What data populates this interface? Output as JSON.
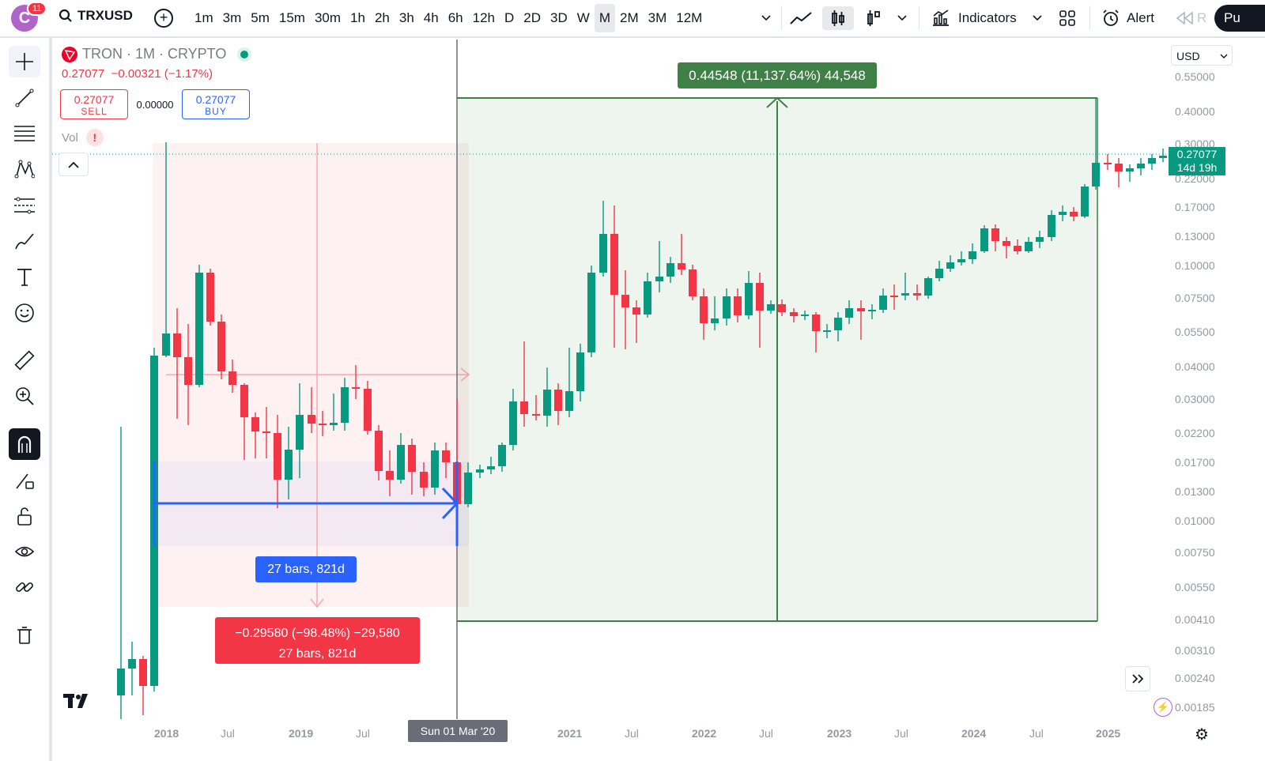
{
  "topbar": {
    "notifications": "11",
    "avatar_letter": "C",
    "symbol": "TRXUSD",
    "intervals": [
      "1m",
      "3m",
      "5m",
      "15m",
      "30m",
      "1h",
      "2h",
      "3h",
      "4h",
      "6h",
      "12h",
      "D",
      "2D",
      "3D",
      "W",
      "M",
      "2M",
      "3M",
      "12M"
    ],
    "active_interval": "M",
    "indicators_label": "Indicators",
    "alert_label": "Alert",
    "replay_label": "R",
    "publish_label": "Pu"
  },
  "legend": {
    "title": "TRON · 1M · CRYPTO",
    "last": "0.27077",
    "change": "−0.00321 (−1.17%)",
    "sell_price": "0.27077",
    "sell_label": "SELL",
    "spread": "0.00000",
    "buy_price": "0.27077",
    "buy_label": "BUY",
    "vol_label": "Vol",
    "vol_warning": "!"
  },
  "price_scale": {
    "currency": "USD",
    "ticks": [
      "0.55000",
      "0.40000",
      "0.30000",
      "0.22000",
      "0.17000",
      "0.13000",
      "0.10000",
      "0.07500",
      "0.05500",
      "0.04000",
      "0.03000",
      "0.02200",
      "0.01700",
      "0.01300",
      "0.01000",
      "0.00750",
      "0.00550",
      "0.00410",
      "0.00310",
      "0.00240",
      "0.00185"
    ],
    "current_price": "0.27077",
    "countdown": "14d 19h"
  },
  "time_scale": {
    "labels": [
      "2018",
      "Jul",
      "2019",
      "Jul",
      "Jul",
      "2021",
      "Jul",
      "2022",
      "Jul",
      "2023",
      "Jul",
      "2024",
      "Jul",
      "2025"
    ],
    "crosshair_date": "Sun 01 Mar '20"
  },
  "drawings": {
    "long_position": "0.44548 (11,137.64%) 44,548",
    "date_range": "27 bars, 821d",
    "price_range_line1": "−0.29580 (−98.48%) −29,580",
    "price_range_line2": "27 bars, 821d"
  },
  "colors": {
    "up": "#089981",
    "down": "#f23645",
    "accent": "#2962ff",
    "position_green": "#3e8045"
  }
}
